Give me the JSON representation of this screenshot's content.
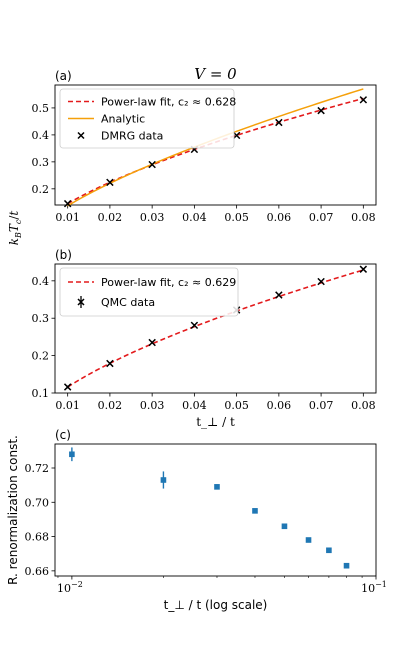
{
  "chart_data": [
    {
      "type": "line",
      "panel_label": "(a)",
      "title": "V = 0",
      "xlabel": "",
      "ylabel": "k_B T_c / t",
      "xlim": [
        0.007,
        0.083
      ],
      "ylim": [
        0.14,
        0.585
      ],
      "x_ticks": [
        0.01,
        0.02,
        0.03,
        0.04,
        0.05,
        0.06,
        0.07,
        0.08
      ],
      "x_tick_labels": [
        "0.01",
        "0.02",
        "0.03",
        "0.04",
        "0.05",
        "0.06",
        "0.07",
        "0.08"
      ],
      "y_ticks": [
        0.2,
        0.3,
        0.4,
        0.5
      ],
      "y_tick_labels": [
        "0.2",
        "0.3",
        "0.4",
        "0.5"
      ],
      "legend_position": "top-left",
      "series": [
        {
          "name": "Power-law fit, c₂ ≈ 0.628",
          "kind": "fit",
          "color": "#e31a1c",
          "style": "dashed",
          "exponent": 0.628,
          "anchor": [
            0.01,
            0.145
          ]
        },
        {
          "name": "Analytic",
          "kind": "analytic",
          "color": "#f5a00a",
          "style": "solid",
          "exponent": 0.686,
          "anchor": [
            0.01,
            0.137
          ]
        },
        {
          "name": "DMRG data",
          "kind": "markers",
          "marker": "x",
          "color": "#000000",
          "x": [
            0.01,
            0.02,
            0.03,
            0.04,
            0.05,
            0.06,
            0.07,
            0.08
          ],
          "y": [
            0.145,
            0.224,
            0.29,
            0.346,
            0.398,
            0.446,
            0.49,
            0.53
          ]
        }
      ]
    },
    {
      "type": "line",
      "panel_label": "(b)",
      "xlabel": "t_⊥ / t",
      "ylabel": "",
      "xlim": [
        0.007,
        0.083
      ],
      "ylim": [
        0.1,
        0.445
      ],
      "x_ticks": [
        0.01,
        0.02,
        0.03,
        0.04,
        0.05,
        0.06,
        0.07,
        0.08
      ],
      "x_tick_labels": [
        "0.01",
        "0.02",
        "0.03",
        "0.04",
        "0.05",
        "0.06",
        "0.07",
        "0.08"
      ],
      "y_ticks": [
        0.1,
        0.2,
        0.3,
        0.4
      ],
      "y_tick_labels": [
        "0.1",
        "0.2",
        "0.3",
        "0.4"
      ],
      "legend_position": "top-left",
      "series": [
        {
          "name": "Power-law fit, c₂ ≈ 0.629",
          "kind": "fit",
          "color": "#e31a1c",
          "style": "dashed",
          "exponent": 0.629,
          "anchor": [
            0.01,
            0.116
          ]
        },
        {
          "name": "QMC data",
          "kind": "errorbar",
          "marker": "x",
          "color": "#000000",
          "x": [
            0.01,
            0.02,
            0.03,
            0.04,
            0.05,
            0.06,
            0.07,
            0.08
          ],
          "y": [
            0.116,
            0.179,
            0.235,
            0.281,
            0.322,
            0.362,
            0.398,
            0.431
          ],
          "err": [
            0.004,
            0.003,
            0.003,
            0.003,
            0.003,
            0.003,
            0.003,
            0.003
          ]
        }
      ]
    },
    {
      "type": "scatter",
      "panel_label": "(c)",
      "xlabel": "t_⊥ / t (log scale)",
      "ylabel": "R. renormalization const.",
      "x_scale": "log",
      "xlim": [
        0.0088,
        0.1
      ],
      "ylim": [
        0.657,
        0.734
      ],
      "x_ticks": [
        0.01,
        0.1
      ],
      "x_tick_labels": [
        "10",
        "10"
      ],
      "x_tick_exponents": [
        "−2",
        "−1"
      ],
      "y_ticks": [
        0.66,
        0.68,
        0.7,
        0.72
      ],
      "y_tick_labels": [
        "0.66",
        "0.68",
        "0.70",
        "0.72"
      ],
      "series": [
        {
          "kind": "errorbar",
          "marker": "square",
          "color": "#1f77b4",
          "x": [
            0.01,
            0.02,
            0.03,
            0.04,
            0.05,
            0.06,
            0.07,
            0.08
          ],
          "y": [
            0.728,
            0.713,
            0.709,
            0.695,
            0.686,
            0.678,
            0.672,
            0.663
          ],
          "err": [
            0.004,
            0.005,
            0.0015,
            0.0008,
            0.0008,
            0.0008,
            0.0008,
            0.0008
          ]
        }
      ]
    }
  ]
}
